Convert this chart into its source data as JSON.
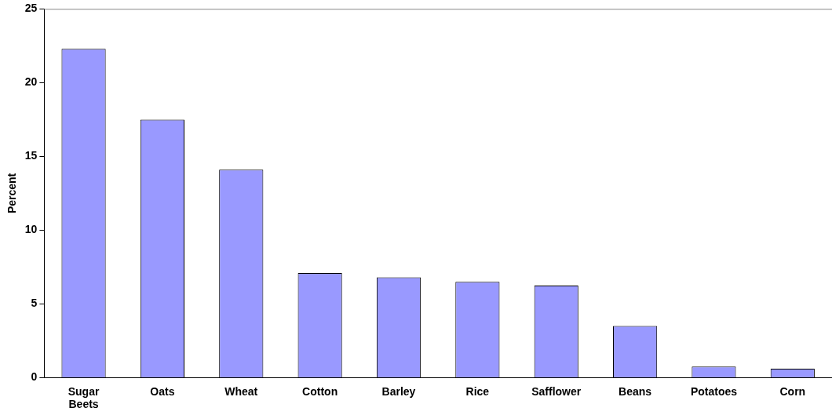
{
  "chart_data": {
    "type": "bar",
    "ylabel": "Percent",
    "categories": [
      "Sugar Beets",
      "Oats",
      "Wheat",
      "Cotton",
      "Barley",
      "Rice",
      "Safflower",
      "Beans",
      "Potatoes",
      "Corn"
    ],
    "values": [
      22.3,
      17.5,
      14.1,
      7.1,
      6.8,
      6.5,
      6.25,
      3.5,
      0.75,
      0.6
    ],
    "color": "#9999ff",
    "ylim": [
      0,
      25
    ],
    "yticks": [
      0,
      5,
      10,
      15,
      20,
      25
    ],
    "grid": false,
    "legend": false
  }
}
